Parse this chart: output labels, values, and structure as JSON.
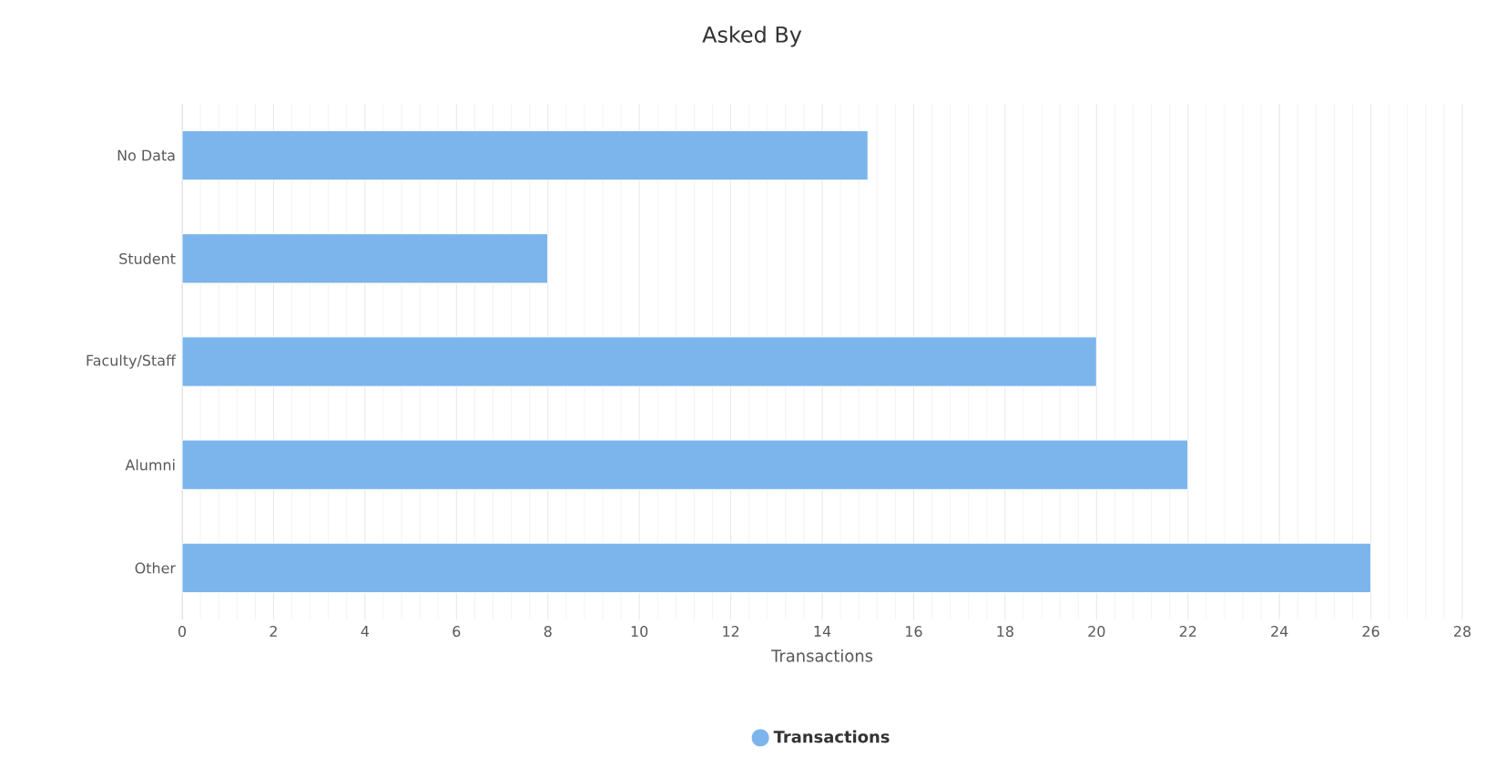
{
  "chart_data": {
    "type": "bar",
    "orientation": "horizontal",
    "title": "Asked By",
    "xlabel": "Transactions",
    "categories": [
      "No Data",
      "Student",
      "Faculty/Staff",
      "Alumni",
      "Other"
    ],
    "series": [
      {
        "name": "Transactions",
        "color": "#7cb5ec",
        "values": [
          15,
          8,
          20,
          22,
          26
        ]
      }
    ],
    "xlim": [
      0,
      28
    ],
    "xticks": [
      0,
      2,
      4,
      6,
      8,
      10,
      12,
      14,
      16,
      18,
      20,
      22,
      24,
      26,
      28
    ],
    "grid": "x",
    "legend": "bottom"
  }
}
